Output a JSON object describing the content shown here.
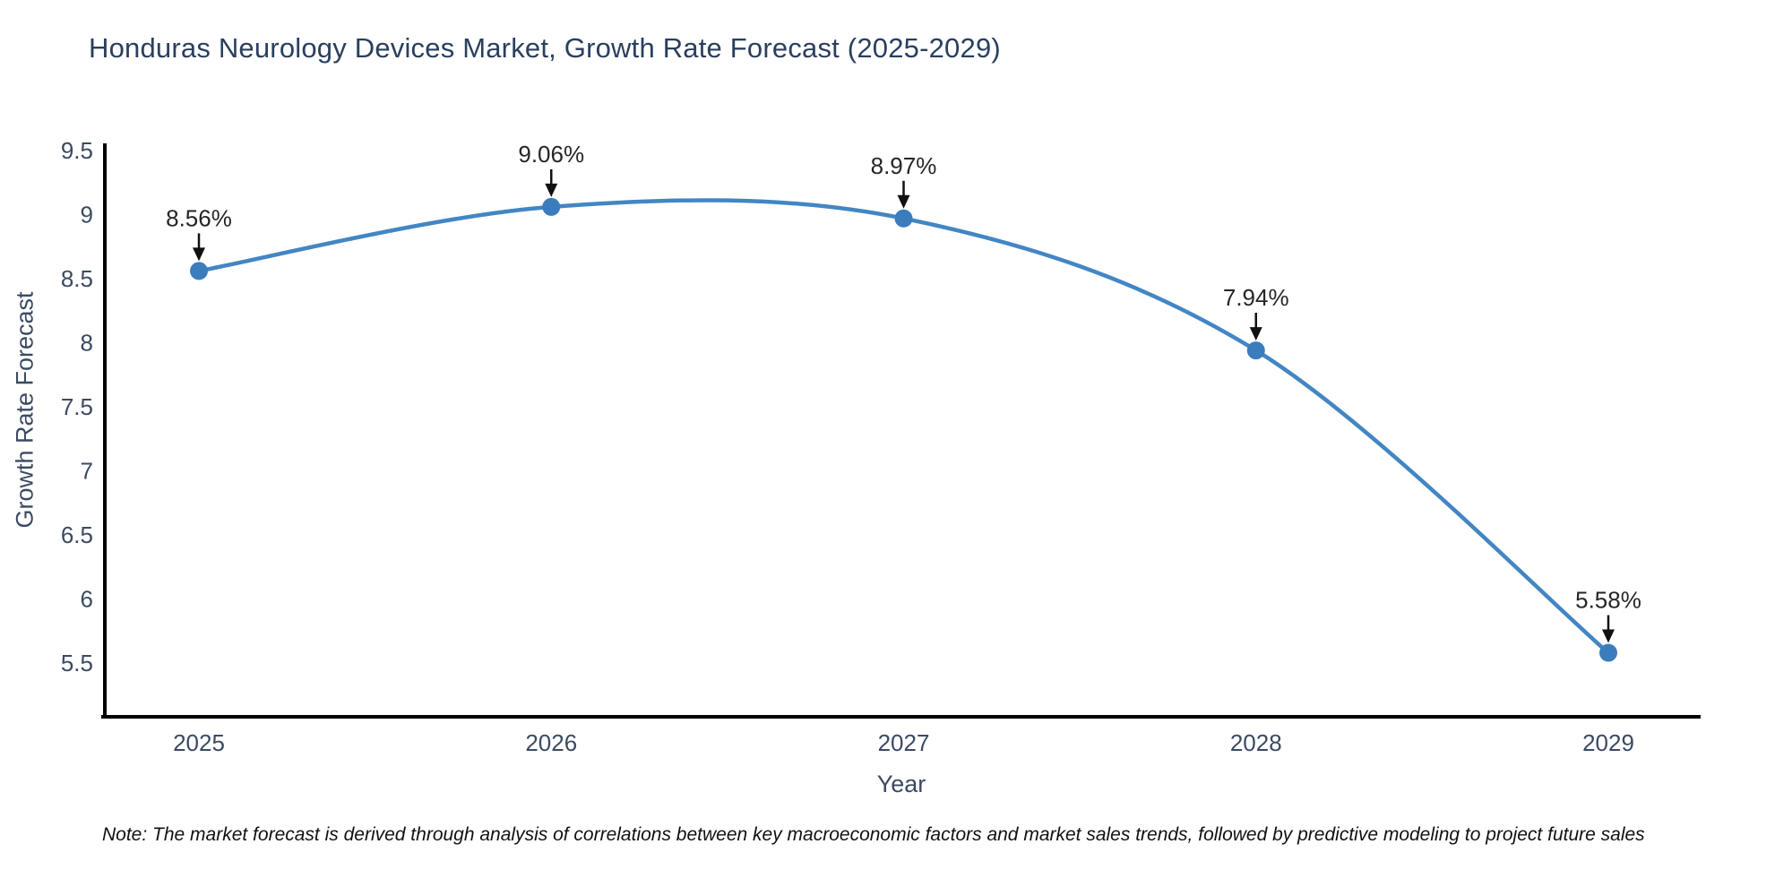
{
  "title": "Honduras Neurology Devices Market, Growth Rate Forecast (2025-2029)",
  "note": "Note: The market forecast is derived through analysis of correlations between key macroeconomic factors and market sales trends, followed by predictive modeling to project future sales",
  "chart_data": {
    "type": "line",
    "title": "Honduras Neurology Devices Market, Growth Rate Forecast (2025-2029)",
    "categories": [
      "2025",
      "2026",
      "2027",
      "2028",
      "2029"
    ],
    "series": [
      {
        "name": "Growth Rate Forecast",
        "values": [
          8.56,
          9.06,
          8.97,
          7.94,
          5.58
        ],
        "point_labels": [
          "8.56%",
          "9.06%",
          "8.97%",
          "7.94%",
          "5.58%"
        ]
      }
    ],
    "xlabel": "Year",
    "ylabel": "Growth Rate Forecast",
    "y_ticks": [
      9.5,
      9,
      8.5,
      8,
      7.5,
      7,
      6.5,
      6,
      5.5
    ],
    "ylim": [
      5.08,
      9.56
    ],
    "line_shape": "spline",
    "grid": false,
    "legend": "none",
    "annotations": "value labels with down arrows above each point",
    "colors": {
      "line": "#4286c4",
      "marker": "#3b7cbd",
      "axis": "#000000",
      "tick_label": "#3b4a63",
      "title": "#2a3f5f",
      "annotation_text": "#262626",
      "annotation_arrow": "#111111",
      "background": "#ffffff"
    }
  }
}
